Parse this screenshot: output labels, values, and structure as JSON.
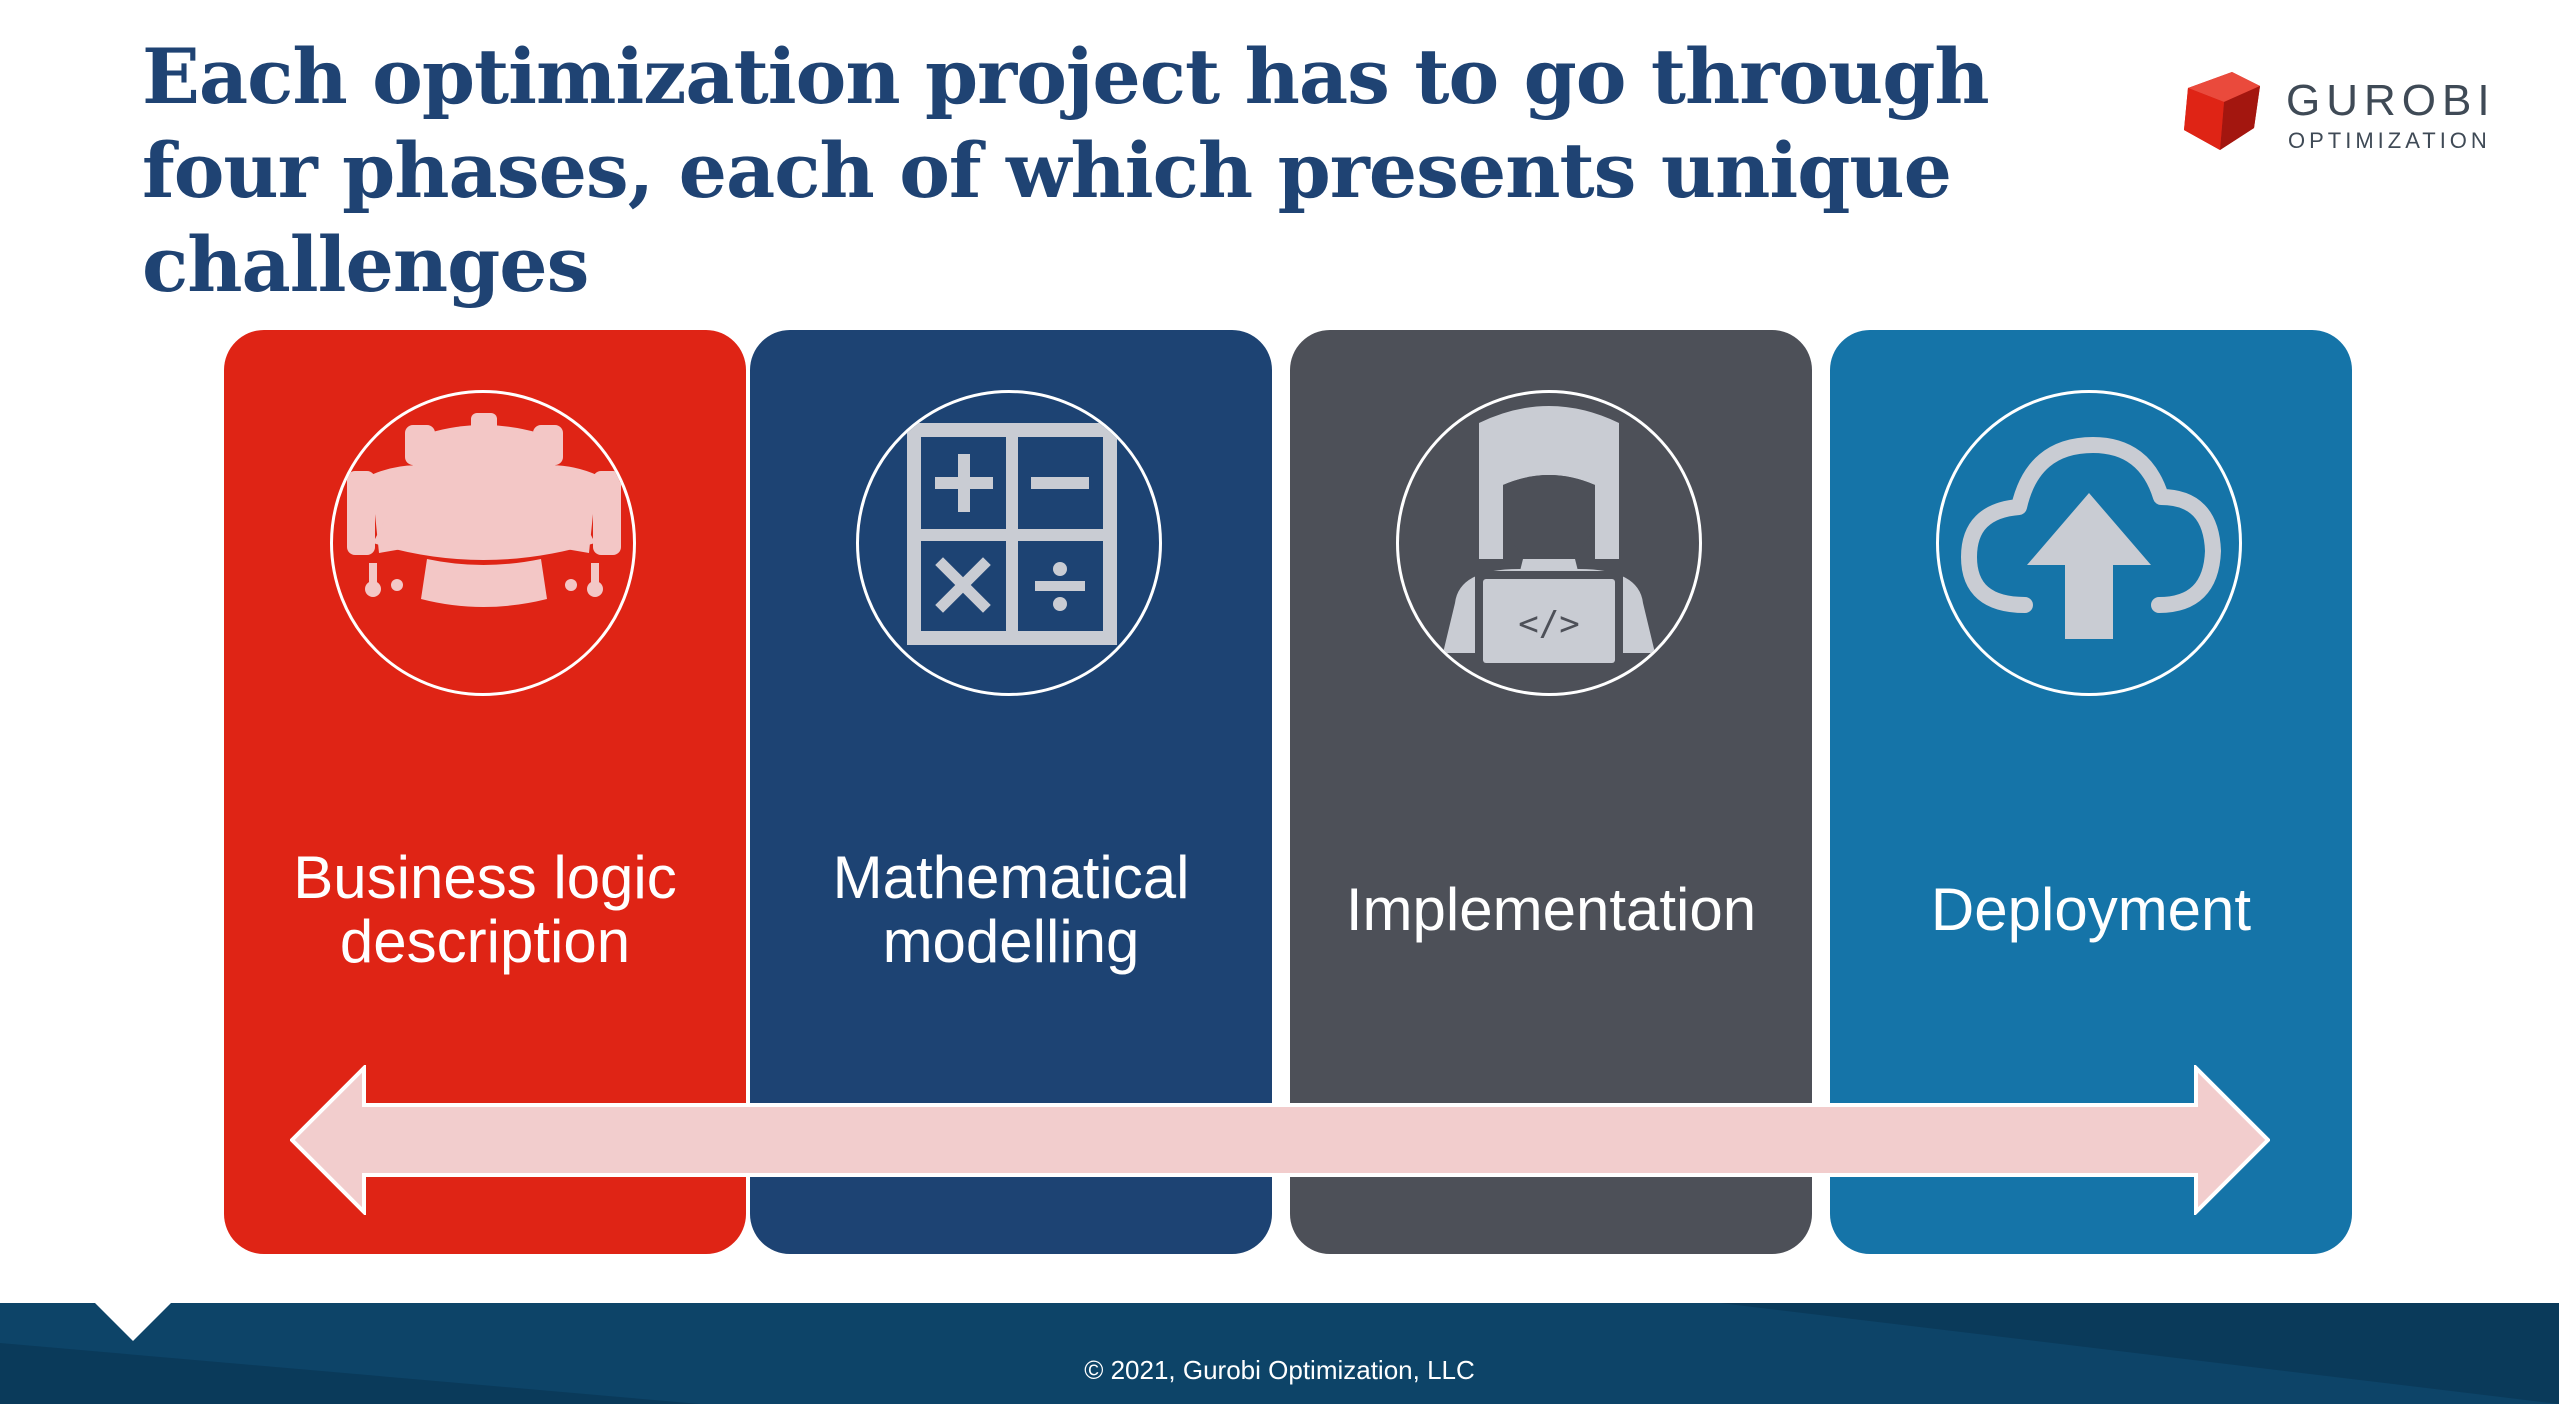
{
  "title": "Each optimization project has to go through four phases, each of which presents unique challenges",
  "logo": {
    "name": "GUROBI",
    "sub": "OPTIMIZATION"
  },
  "colors": {
    "title": "#1f4373",
    "phase1": "#df2415",
    "phase2": "#1d4373",
    "phase3": "#4d5058",
    "phase4": "#1574a8",
    "arrow_fill": "#f2cdcd",
    "icon_gray": "#c9ccd3",
    "footer": "#0d4468"
  },
  "phases": [
    {
      "label": "Business logic\ndescription",
      "icon": "meeting-table-icon"
    },
    {
      "label": "Mathematical\nmodelling",
      "icon": "calculator-icon"
    },
    {
      "label": "Implementation",
      "icon": "developer-laptop-icon"
    },
    {
      "label": "Deployment",
      "icon": "cloud-upload-icon"
    }
  ],
  "arrow": {
    "icon": "double-headed-arrow-icon"
  },
  "footer": {
    "copyright": "© 2021, Gurobi Optimization, LLC"
  }
}
